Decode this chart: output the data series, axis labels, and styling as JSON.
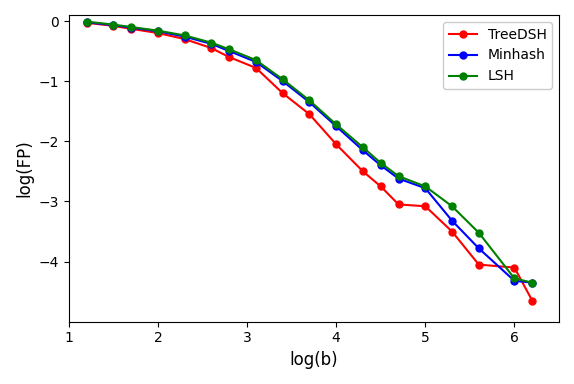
{
  "title": "",
  "xlabel": "log(b)",
  "ylabel": "log(FP)",
  "background_color": "#ffffff",
  "treedsh": {
    "label": "TreeDSH",
    "color": "red",
    "x": [
      1.2,
      1.5,
      1.7,
      2.0,
      2.3,
      2.6,
      2.8,
      3.1,
      3.4,
      3.7,
      4.0,
      4.3,
      4.5,
      4.7,
      5.0,
      5.3,
      5.6,
      6.0,
      6.2
    ],
    "y": [
      -0.03,
      -0.08,
      -0.13,
      -0.2,
      -0.3,
      -0.45,
      -0.6,
      -0.78,
      -1.2,
      -1.55,
      -2.05,
      -2.5,
      -2.75,
      -3.05,
      -3.08,
      -3.5,
      -4.05,
      -4.1,
      -4.65
    ]
  },
  "minhash": {
    "label": "Minhash",
    "color": "blue",
    "x": [
      1.2,
      1.5,
      1.7,
      2.0,
      2.3,
      2.6,
      2.8,
      3.1,
      3.4,
      3.7,
      4.0,
      4.3,
      4.5,
      4.7,
      5.0,
      5.3,
      5.6,
      6.0,
      6.2
    ],
    "y": [
      -0.02,
      -0.07,
      -0.11,
      -0.17,
      -0.26,
      -0.38,
      -0.5,
      -0.68,
      -1.0,
      -1.35,
      -1.75,
      -2.15,
      -2.4,
      -2.62,
      -2.78,
      -3.32,
      -3.78,
      -4.32,
      -4.35
    ]
  },
  "lsh": {
    "label": "LSH",
    "color": "green",
    "x": [
      1.2,
      1.5,
      1.7,
      2.0,
      2.3,
      2.6,
      2.8,
      3.1,
      3.4,
      3.7,
      4.0,
      4.3,
      4.5,
      4.7,
      5.0,
      5.3,
      5.6,
      6.0,
      6.2
    ],
    "y": [
      -0.01,
      -0.06,
      -0.1,
      -0.16,
      -0.24,
      -0.36,
      -0.47,
      -0.65,
      -0.97,
      -1.32,
      -1.72,
      -2.1,
      -2.36,
      -2.58,
      -2.75,
      -3.08,
      -3.52,
      -4.28,
      -4.35
    ]
  },
  "xlim": [
    1.0,
    6.5
  ],
  "ylim": [
    -5.0,
    0.1
  ],
  "xticks": [
    1,
    2,
    3,
    4,
    5,
    6
  ],
  "yticks": [
    0,
    -1,
    -2,
    -3,
    -4
  ],
  "legend_loc": "upper right"
}
